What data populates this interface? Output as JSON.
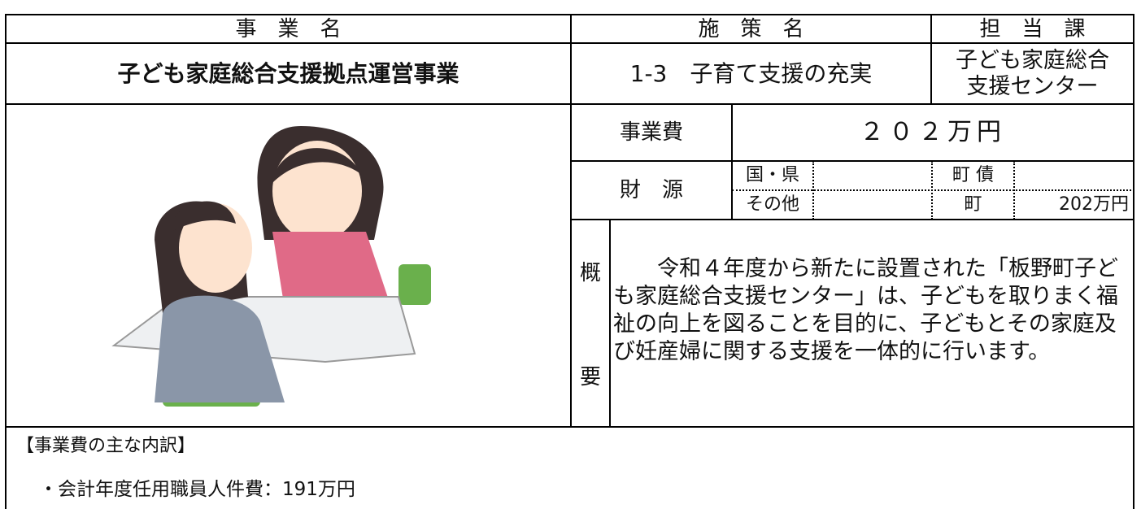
{
  "header": {
    "project_label": "事　業　名",
    "policy_label": "施　策　名",
    "dept_label": "担　当　課"
  },
  "project": {
    "name": "子ども家庭総合支援拠点運営事業",
    "policy": "1-3　子育て支援の充実",
    "dept_lines": [
      "子ども家庭総合",
      "支援センター"
    ]
  },
  "cost": {
    "label": "事業費",
    "value": "２０２万円"
  },
  "funding": {
    "label": "財　源",
    "national": "国・県",
    "other": "その他",
    "bond": "町 債",
    "town": "町",
    "town_value": "202万円"
  },
  "summary": {
    "label": [
      "概",
      "要"
    ],
    "text": "令和４年度から新たに設置された「板野町子ども家庭総合支援センター」は、子どもを取りまく福祉の向上を図ることを目的に、子どもとその家庭及び妊産婦に関する支援を一体的に行います。"
  },
  "breakdown": {
    "title": "【事業費の主な内訳】",
    "items": [
      "・会計年度任用職員人件費：191万円"
    ]
  }
}
